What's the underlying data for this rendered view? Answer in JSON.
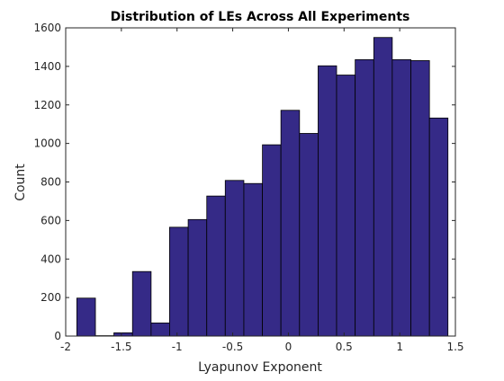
{
  "chart_data": {
    "type": "bar",
    "title": "Distribution of LEs Across All Experiments",
    "xlabel": "Lyapunov Exponent",
    "ylabel": "Count",
    "xlim": [
      -2,
      1.5
    ],
    "ylim": [
      0,
      1600
    ],
    "x_ticks": [
      -2,
      -1.5,
      -1,
      -0.5,
      0,
      0.5,
      1,
      1.5
    ],
    "x_tick_labels": [
      "-2",
      "-1.5",
      "-1",
      "-0.5",
      "0",
      "0.5",
      "1",
      "1.5"
    ],
    "y_ticks": [
      0,
      200,
      400,
      600,
      800,
      1000,
      1200,
      1400,
      1600
    ],
    "y_tick_labels": [
      "0",
      "200",
      "400",
      "600",
      "800",
      "1000",
      "1200",
      "1400",
      "1600"
    ],
    "bin_edges": [
      -1.9,
      -1.733,
      -1.567,
      -1.4,
      -1.233,
      -1.067,
      -0.9,
      -0.733,
      -0.567,
      -0.4,
      -0.233,
      -0.067,
      0.1,
      0.267,
      0.433,
      0.6,
      0.767,
      0.933,
      1.1,
      1.267,
      1.433
    ],
    "values": [
      197,
      2,
      17,
      335,
      68,
      565,
      605,
      727,
      808,
      792,
      993,
      1172,
      1052,
      1403,
      1355,
      1435,
      1550,
      1435,
      1430,
      1132
    ],
    "grid": false,
    "colors": {
      "bar_fill": "#352a87",
      "bar_edge": "#000000",
      "axis": "#262626"
    }
  }
}
